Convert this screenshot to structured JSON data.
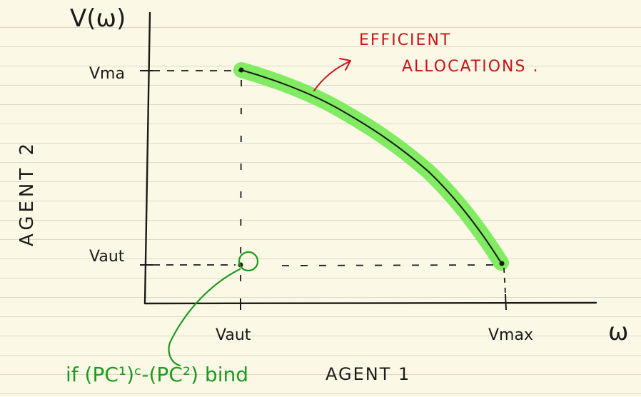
{
  "labels": {
    "y_axis_title": "V(ω)",
    "y_tick_top": "Vma",
    "y_tick_bottom": "Vaut",
    "x_tick_left": "Vaut",
    "x_tick_right": "Vmax",
    "x_axis_symbol": "ω",
    "agent_two": "AGENT 2",
    "agent_one": "AGENT 1",
    "annotation_line1": "EFFICIENT",
    "annotation_line2": "ALLOCATIONS .",
    "condition_note": "if (PC¹)ᶜ-(PC²) bind"
  },
  "colors": {
    "ink": "#1a1a1a",
    "annotation_red": "#c8141b",
    "note_green": "#1f9a1f",
    "highlight": "#7aea5a",
    "paper": "#fbf8e6",
    "ruled_lines": "#ddd9c6"
  }
}
